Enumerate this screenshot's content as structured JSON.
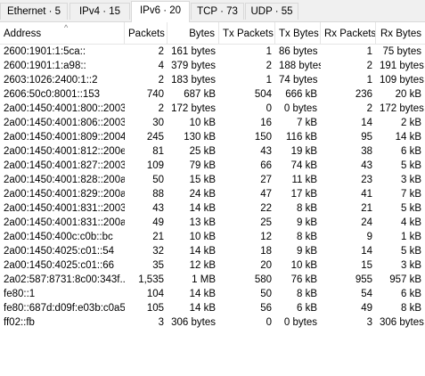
{
  "tabs": [
    {
      "label": "Ethernet · 5",
      "active": false
    },
    {
      "label": "IPv4 · 15",
      "active": false
    },
    {
      "label": "IPv6 · 20",
      "active": true
    },
    {
      "label": "TCP · 73",
      "active": false
    },
    {
      "label": "UDP · 55",
      "active": false
    }
  ],
  "columns": [
    "Address",
    "Packets",
    "Bytes",
    "Tx Packets",
    "Tx Bytes",
    "Rx Packets",
    "Rx Bytes"
  ],
  "sort_indicator": "^",
  "rows": [
    [
      "2600:1901:1:5ca::",
      "2",
      "161 bytes",
      "1",
      "86 bytes",
      "1",
      "75 bytes"
    ],
    [
      "2600:1901:1:a98::",
      "4",
      "379 bytes",
      "2",
      "188 bytes",
      "2",
      "191 bytes"
    ],
    [
      "2603:1026:2400:1::2",
      "2",
      "183 bytes",
      "1",
      "74 bytes",
      "1",
      "109 bytes"
    ],
    [
      "2606:50c0:8001::153",
      "740",
      "687 kB",
      "504",
      "666 kB",
      "236",
      "20 kB"
    ],
    [
      "2a00:1450:4001:800::2003",
      "2",
      "172 bytes",
      "0",
      "0 bytes",
      "2",
      "172 bytes"
    ],
    [
      "2a00:1450:4001:806::2003",
      "30",
      "10 kB",
      "16",
      "7 kB",
      "14",
      "2 kB"
    ],
    [
      "2a00:1450:4001:809::2004",
      "245",
      "130 kB",
      "150",
      "116 kB",
      "95",
      "14 kB"
    ],
    [
      "2a00:1450:4001:812::200e",
      "81",
      "25 kB",
      "43",
      "19 kB",
      "38",
      "6 kB"
    ],
    [
      "2a00:1450:4001:827::2003",
      "109",
      "79 kB",
      "66",
      "74 kB",
      "43",
      "5 kB"
    ],
    [
      "2a00:1450:4001:828::200a",
      "50",
      "15 kB",
      "27",
      "11 kB",
      "23",
      "3 kB"
    ],
    [
      "2a00:1450:4001:829::200a",
      "88",
      "24 kB",
      "47",
      "17 kB",
      "41",
      "7 kB"
    ],
    [
      "2a00:1450:4001:831::2003",
      "43",
      "14 kB",
      "22",
      "8 kB",
      "21",
      "5 kB"
    ],
    [
      "2a00:1450:4001:831::200a",
      "49",
      "13 kB",
      "25",
      "9 kB",
      "24",
      "4 kB"
    ],
    [
      "2a00:1450:400c:c0b::bc",
      "21",
      "10 kB",
      "12",
      "8 kB",
      "9",
      "1 kB"
    ],
    [
      "2a00:1450:4025:c01::54",
      "32",
      "14 kB",
      "18",
      "9 kB",
      "14",
      "5 kB"
    ],
    [
      "2a00:1450:4025:c01::66",
      "35",
      "12 kB",
      "20",
      "10 kB",
      "15",
      "3 kB"
    ],
    [
      "2a02:587:8731:8c00:343f...",
      "1,535",
      "1 MB",
      "580",
      "76 kB",
      "955",
      "957 kB"
    ],
    [
      "fe80::1",
      "104",
      "14 kB",
      "50",
      "8 kB",
      "54",
      "6 kB"
    ],
    [
      "fe80::687d:d09f:e03b:c0a5",
      "105",
      "14 kB",
      "56",
      "6 kB",
      "49",
      "8 kB"
    ],
    [
      "ff02::fb",
      "3",
      "306 bytes",
      "0",
      "0 bytes",
      "3",
      "306 bytes"
    ]
  ]
}
